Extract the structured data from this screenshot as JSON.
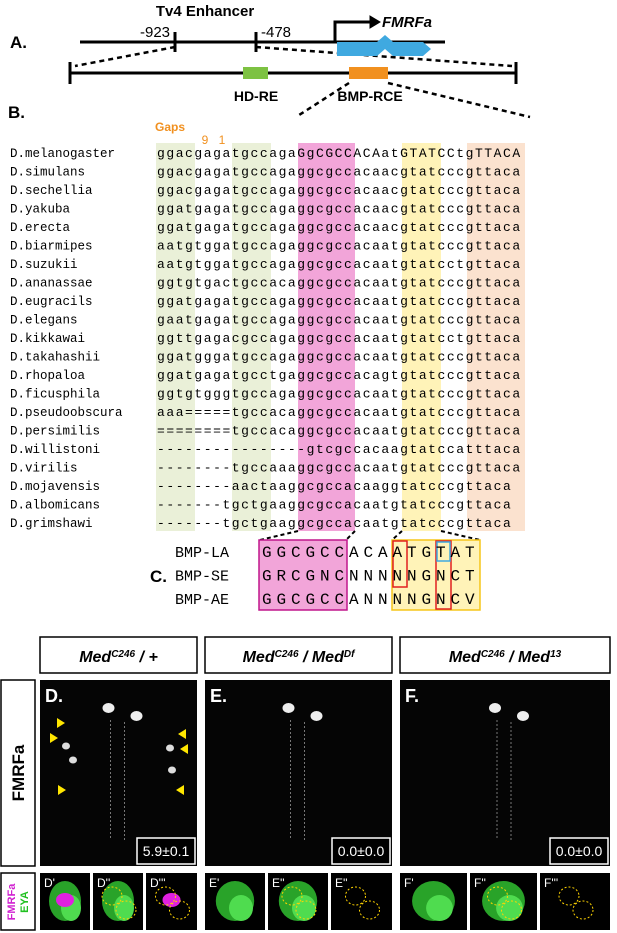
{
  "panel_a": {
    "label": "A.",
    "title": "Tv4 Enhancer",
    "positions": [
      "-923",
      "-478"
    ],
    "gene": "FMRFa",
    "elements": [
      "HD-RE",
      "BMP-RCE"
    ]
  },
  "panel_b": {
    "label": "B.",
    "gaps_label": "Gaps",
    "gap_numbers": [
      "9",
      "1"
    ],
    "alignment": [
      {
        "species": "D.melanogaster",
        "sequence": "ggacgagatgccagaGgCGCCACAatGTATCCtgTTACA"
      },
      {
        "species": "D.simulans",
        "sequence": "ggacgagatgccagaggcgccacaacgtatcccgttaca"
      },
      {
        "species": "D.sechellia",
        "sequence": "ggacgagatgccagaggcgccacaacgtatcccgttaca"
      },
      {
        "species": "D.yakuba",
        "sequence": "ggatgagatgccagaggcgccacaacgtatcccgttaca"
      },
      {
        "species": "D.erecta",
        "sequence": "ggatgagatgccagaggcgccacaacgtatcccgttaca"
      },
      {
        "species": "D.biarmipes",
        "sequence": "aatgtggatgccagaggcgccacaatgtatcccgttaca"
      },
      {
        "species": "D.suzukii",
        "sequence": "aatgtggatgccagaggcgccacaatgtatcctgttaca"
      },
      {
        "species": "D.ananassae",
        "sequence": "ggtgtgactgccacaggcgccacaatgtatcccgttaca"
      },
      {
        "species": "D.eugracils",
        "sequence": "ggatgagatgccagaggcgccacaatgtatcccgttaca"
      },
      {
        "species": "D.elegans",
        "sequence": "gaatgagatgccagaggcgccacaatgtatcccgttaca"
      },
      {
        "species": "D.kikkawai",
        "sequence": "ggttgagacgccagaggcgccacaatgtatcctgttaca"
      },
      {
        "species": "D.takahashii",
        "sequence": "ggatgggatgccagaggcgccacaatgtatcccgttaca"
      },
      {
        "species": "D.rhopaloa",
        "sequence": "ggatgagatgcctgaggcgccacagtgtatcccgttaca"
      },
      {
        "species": "D.ficusphila",
        "sequence": "ggtgtgggtgccagaggcgccacaatgtatcccgttaca"
      },
      {
        "species": "D.pseudoobscura",
        "sequence": "aaa=====tgccacaggcgccacaatgtatcccgttaca"
      },
      {
        "species": "D.persimilis",
        "sequence": "========tgccacaggcgccacaatgtatcccgttaca"
      },
      {
        "species": "D.willistoni",
        "sequence": "----------------gtcgccacaagtatccatttaca"
      },
      {
        "species": "D.virilis",
        "sequence": "--------tgccaaaggcgccacaatgtatcccgttaca"
      },
      {
        "species": "D.mojavensis",
        "sequence": "--------aactaaggcgccacaaggtatcccgttaca"
      },
      {
        "species": "D.albomicans",
        "sequence": "-------tgctgaaggcgccacaatgtatcccgttaca"
      },
      {
        "species": "D.grimshawi",
        "sequence": "-------tgctgaaggcgccacaatgtatcccgttaca"
      }
    ]
  },
  "panel_c": {
    "label": "C.",
    "motifs": [
      {
        "name": "BMP-LA",
        "sequence": "GGCGCCACAATGTAT"
      },
      {
        "name": "BMP-SE",
        "sequence": "GRCGNCNNNNNGNCT"
      },
      {
        "name": "BMP-AE",
        "sequence": "GGCGCCANNNNGNCV"
      }
    ]
  },
  "panel_d": {
    "genotypes": [
      [
        {
          "text": "Med"
        },
        {
          "text": "C246",
          "sup": true
        },
        {
          "text": " / +"
        }
      ],
      [
        {
          "text": "Med"
        },
        {
          "text": "C246",
          "sup": true
        },
        {
          "text": " / Med"
        },
        {
          "text": "Df",
          "sup": true
        }
      ],
      [
        {
          "text": "Med"
        },
        {
          "text": "C246",
          "sup": true
        },
        {
          "text": " / Med"
        },
        {
          "text": "13",
          "sup": true
        }
      ]
    ],
    "row_label": "FMRFa",
    "panels": [
      {
        "label": "D.",
        "count": "5.9±0.1"
      },
      {
        "label": "E.",
        "count": "0.0±0.0"
      },
      {
        "label": "F.",
        "count": "0.0±0.0"
      }
    ],
    "sub_panels": [
      "D'",
      "D''",
      "D'''",
      "E'",
      "E''",
      "E''",
      "F'",
      "F''",
      "F'''"
    ],
    "channel_labels": [
      "FMRFa",
      "EYA"
    ]
  }
}
